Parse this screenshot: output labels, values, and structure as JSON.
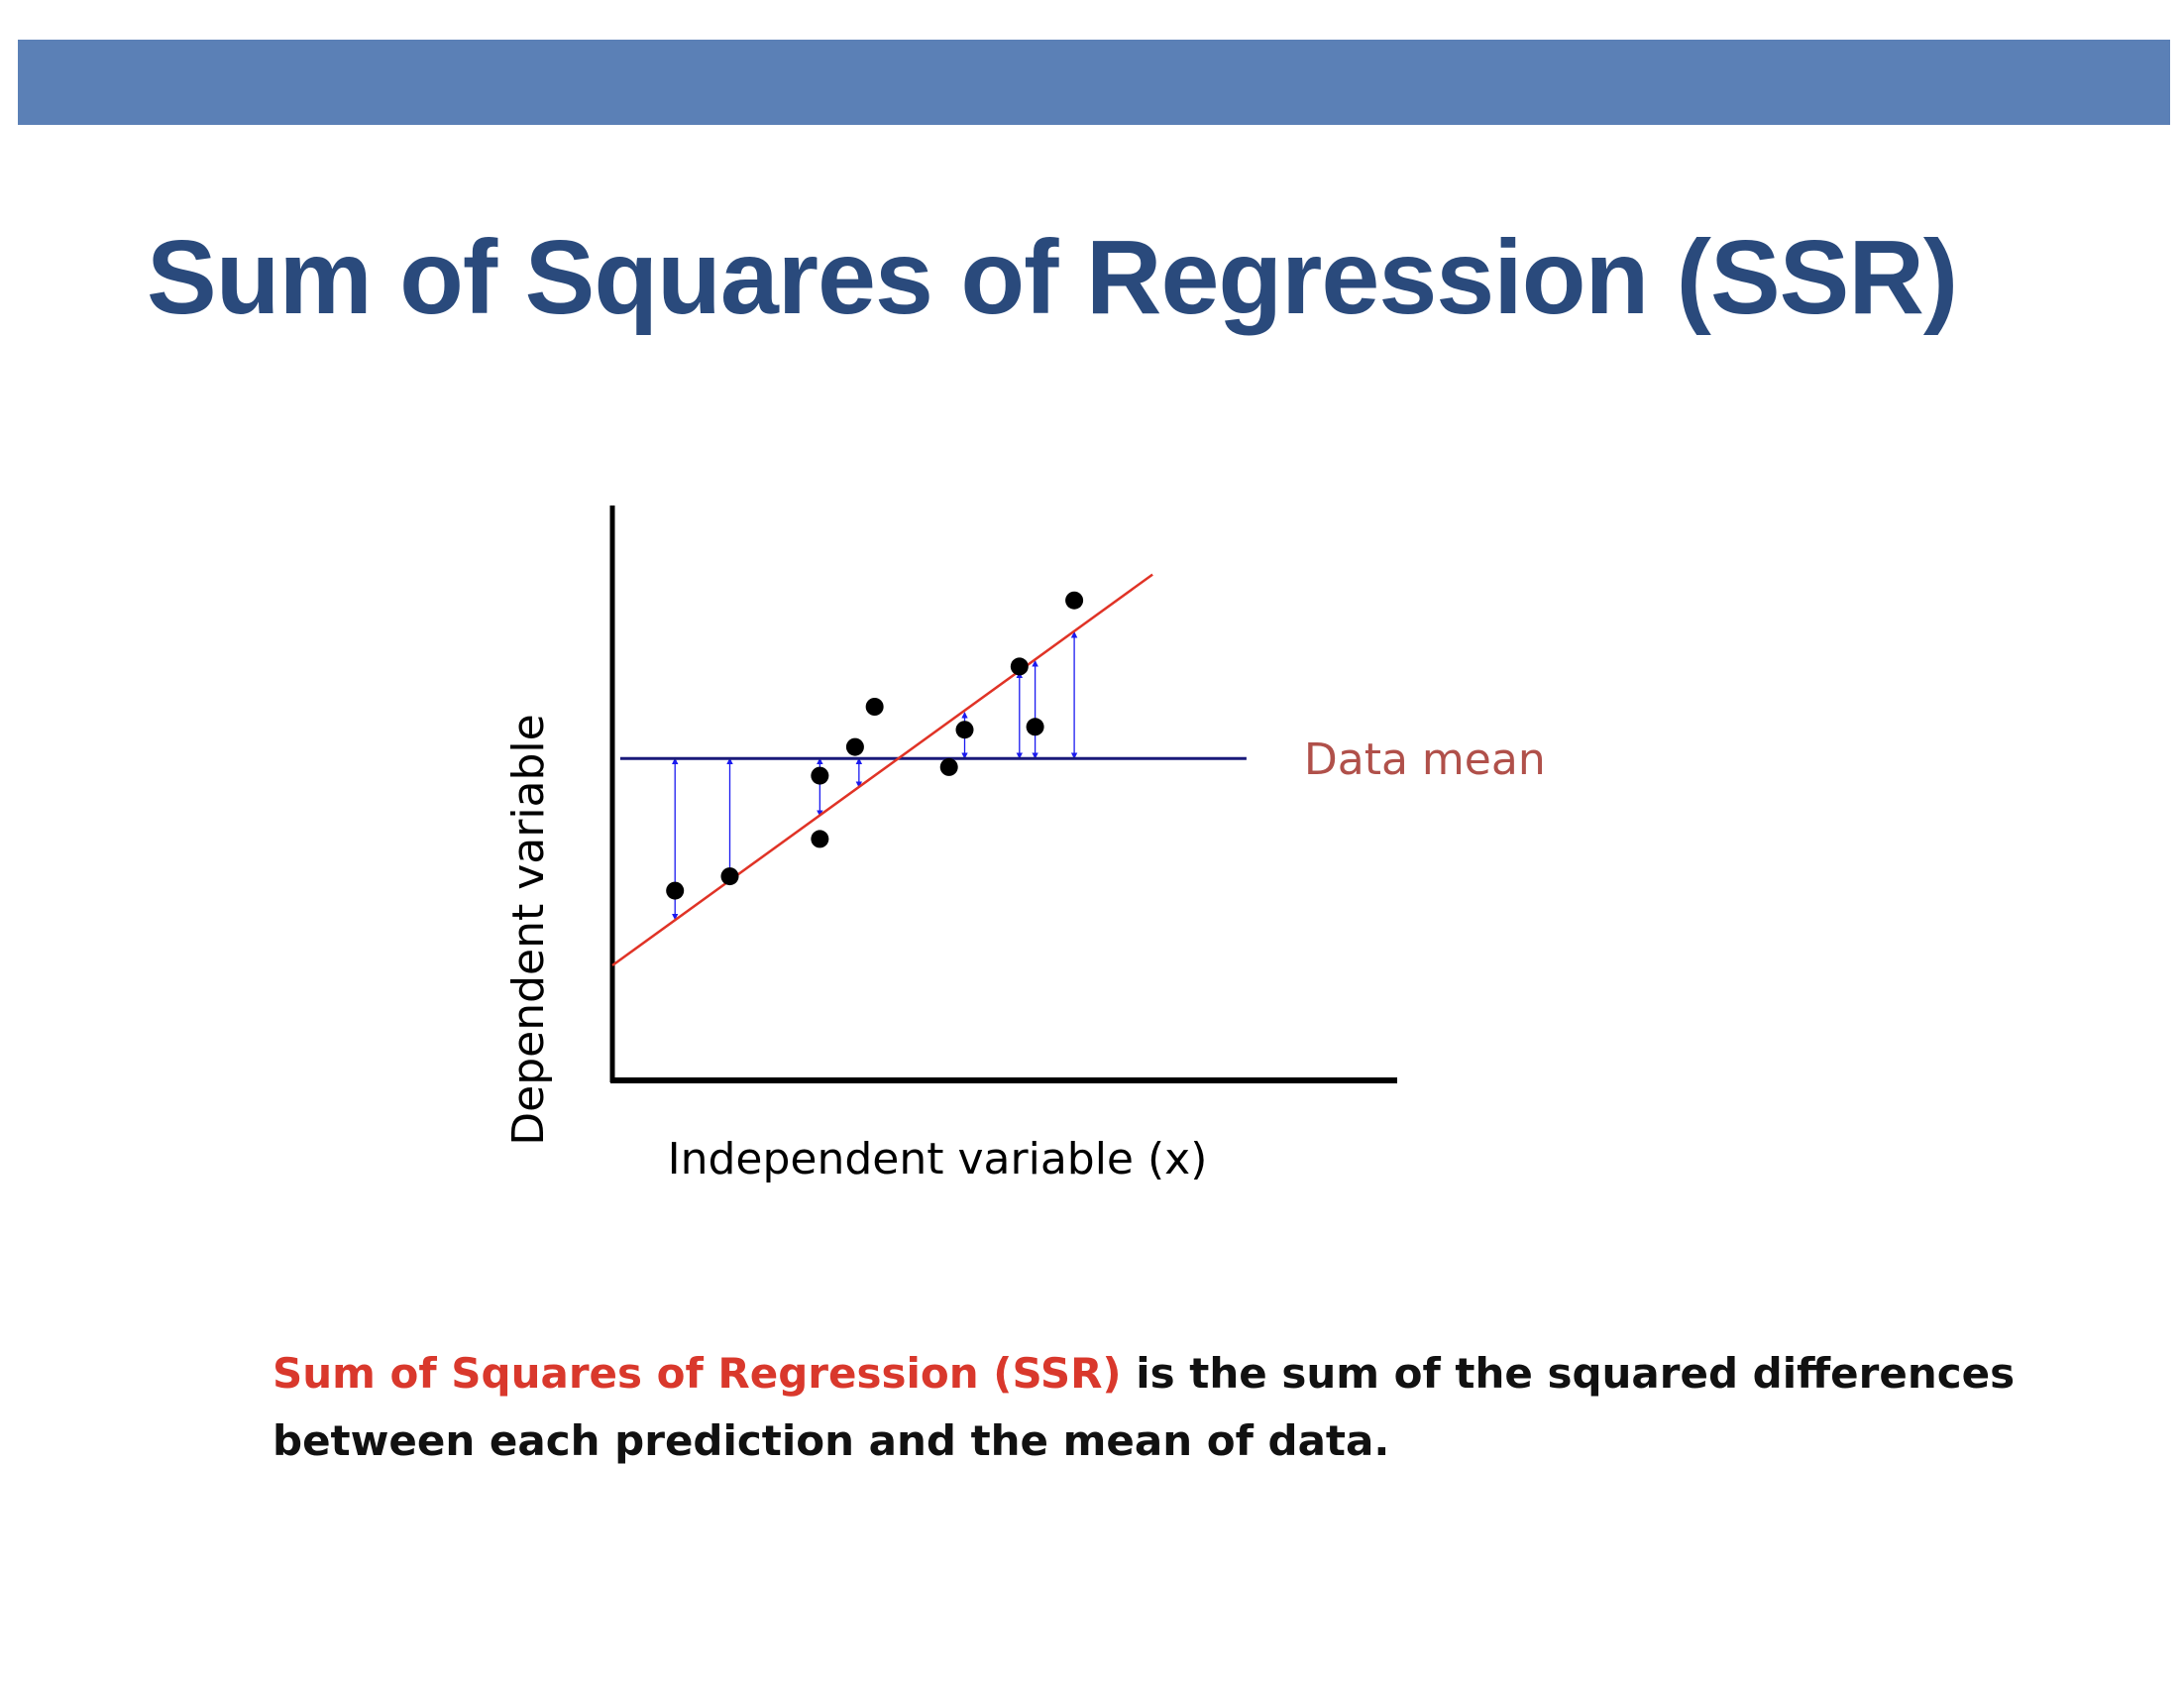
{
  "slide": {
    "title": "Sum of Squares of Regression (SSR)",
    "description": {
      "highlight": "Sum of Squares of Regression (SSR)",
      "rest": " is the sum of the squared differences between each prediction and the mean of data."
    },
    "colors": {
      "top_bar": "#5b80b6",
      "title": "#2a4a7c",
      "highlight": "#d9382c"
    }
  },
  "chart_data": {
    "type": "scatter",
    "title": "",
    "xlabel": "Independent variable (x)",
    "ylabel": "Dependent variable",
    "xlim": [
      0,
      10
    ],
    "ylim": [
      0,
      10
    ],
    "grid": false,
    "points": [
      {
        "x": 0.8,
        "y": 3.3
      },
      {
        "x": 1.5,
        "y": 3.55
      },
      {
        "x": 2.65,
        "y": 5.3
      },
      {
        "x": 2.65,
        "y": 4.2
      },
      {
        "x": 3.1,
        "y": 5.8
      },
      {
        "x": 3.35,
        "y": 6.5
      },
      {
        "x": 4.3,
        "y": 5.45
      },
      {
        "x": 4.5,
        "y": 6.1
      },
      {
        "x": 5.2,
        "y": 7.2
      },
      {
        "x": 5.4,
        "y": 6.15
      },
      {
        "x": 5.9,
        "y": 8.35
      }
    ],
    "mean": {
      "y": 5.6,
      "x_start": 0.1,
      "x_end": 8.1,
      "label": "Data mean",
      "color": "#1a1a7a",
      "label_color": "#b0504a"
    },
    "regression": {
      "x_start": 0.0,
      "y_start": 2.0,
      "x_end": 6.9,
      "y_end": 8.8,
      "color": "#e03326"
    },
    "ssr_segments": [
      {
        "x": 0.8,
        "y_mean": 5.6,
        "y_pred": 2.8
      },
      {
        "x": 1.5,
        "y_mean": 5.6,
        "y_pred": 3.5
      },
      {
        "x": 2.65,
        "y_mean": 5.6,
        "y_pred": 4.6
      },
      {
        "x": 3.15,
        "y_mean": 5.6,
        "y_pred": 5.1
      },
      {
        "x": 4.5,
        "y_mean": 5.6,
        "y_pred": 6.4
      },
      {
        "x": 5.2,
        "y_mean": 5.6,
        "y_pred": 7.1
      },
      {
        "x": 5.4,
        "y_mean": 5.6,
        "y_pred": 7.3
      },
      {
        "x": 5.9,
        "y_mean": 5.6,
        "y_pred": 7.8
      }
    ],
    "arrow_color": "#1a1af0"
  }
}
